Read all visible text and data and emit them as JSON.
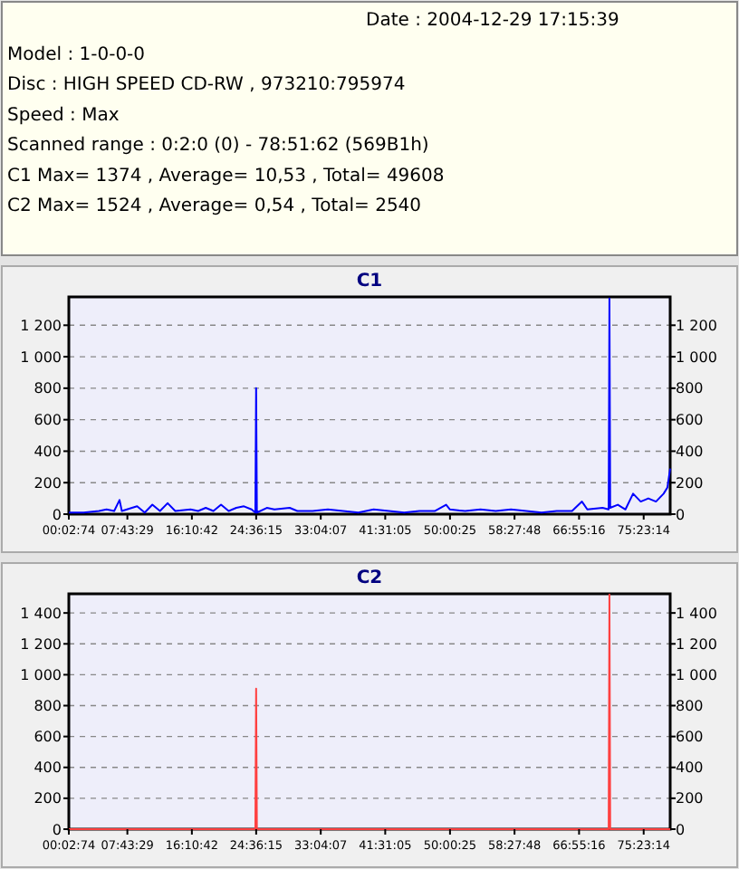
{
  "chart_data": [
    {
      "type": "other",
      "annotations": [
        "Date : 2004-12-29 17:15:39",
        "Model : 1-0-0-0",
        "Disc : HIGH SPEED CD-RW , 973210:795974",
        "Speed : Max",
        "Scanned range : 0:2:0 (0) - 78:51:62 (569B1h)",
        "C1 Max= 1374 , Average= 10,53 , Total= 49608",
        "C2 Max= 1524 , Average= 0,54 , Total= 2540"
      ]
    },
    {
      "type": "line",
      "title": "C1",
      "grid": "y",
      "line_style": "solid",
      "xlim": [
        0.0539,
        78.86
      ],
      "ylim": [
        0,
        1380
      ],
      "y2lim": [
        0,
        1380
      ],
      "xticks": [
        {
          "value": 0.0539,
          "label": "00:02:74"
        },
        {
          "value": 7.7247,
          "label": "07:43:29"
        },
        {
          "value": 16.1783,
          "label": "16:10:42"
        },
        {
          "value": 24.6042,
          "label": "24:36:15"
        },
        {
          "value": 33.0686,
          "label": "33:04:07"
        },
        {
          "value": 41.5181,
          "label": "41:31:05"
        },
        {
          "value": 50.0069,
          "label": "50:00:25"
        },
        {
          "value": 58.4633,
          "label": "58:27:48"
        },
        {
          "value": 66.9211,
          "label": "66:55:16"
        },
        {
          "value": 75.3872,
          "label": "75:23:14"
        }
      ],
      "yticks": [
        0,
        200,
        400,
        600,
        800,
        {
          "value": 1000,
          "label": "1 000"
        },
        {
          "value": 1200,
          "label": "1 200"
        }
      ],
      "y2ticks": [
        0,
        200,
        400,
        600,
        800,
        {
          "value": 1000,
          "label": "1 000"
        },
        {
          "value": 1200,
          "label": "1 200"
        }
      ],
      "series": [
        {
          "color": "#0000ff",
          "x": [
            0.06,
            2,
            4,
            5,
            6,
            6.7,
            7,
            9,
            10,
            11,
            12,
            13,
            14,
            16,
            17,
            18,
            19,
            20,
            21,
            22,
            23,
            24,
            24.5,
            24.6,
            24.7,
            26,
            27,
            29,
            30,
            32,
            34,
            36,
            38,
            40,
            42,
            44,
            46,
            48,
            49.5,
            50,
            52,
            54,
            56,
            58,
            60,
            62,
            64,
            66,
            67.3,
            68,
            70,
            70.8,
            70.9,
            71,
            72,
            73,
            74,
            75,
            76,
            77,
            78,
            78.5,
            78.86
          ],
          "values": [
            10,
            10,
            20,
            30,
            20,
            90,
            20,
            50,
            10,
            60,
            20,
            70,
            20,
            30,
            20,
            40,
            20,
            60,
            20,
            40,
            50,
            30,
            10,
            800,
            10,
            40,
            30,
            40,
            20,
            20,
            30,
            20,
            10,
            30,
            20,
            10,
            20,
            20,
            60,
            30,
            20,
            30,
            20,
            30,
            20,
            10,
            20,
            20,
            80,
            30,
            40,
            30,
            1370,
            40,
            60,
            30,
            130,
            80,
            100,
            80,
            130,
            170,
            290
          ]
        }
      ]
    },
    {
      "type": "line",
      "title": "C2",
      "grid": "y",
      "line_style": "solid",
      "xlim": [
        0.0539,
        78.86
      ],
      "ylim": [
        0,
        1524
      ],
      "y2lim": [
        0,
        1524
      ],
      "xticks": [
        {
          "value": 0.0539,
          "label": "00:02:74"
        },
        {
          "value": 7.7247,
          "label": "07:43:29"
        },
        {
          "value": 16.1783,
          "label": "16:10:42"
        },
        {
          "value": 24.6042,
          "label": "24:36:15"
        },
        {
          "value": 33.0686,
          "label": "33:04:07"
        },
        {
          "value": 41.5181,
          "label": "41:31:05"
        },
        {
          "value": 50.0069,
          "label": "50:00:25"
        },
        {
          "value": 58.4633,
          "label": "58:27:48"
        },
        {
          "value": 66.9211,
          "label": "66:55:16"
        },
        {
          "value": 75.3872,
          "label": "75:23:14"
        }
      ],
      "yticks": [
        0,
        200,
        400,
        600,
        800,
        {
          "value": 1000,
          "label": "1 000"
        },
        {
          "value": 1200,
          "label": "1 200"
        },
        {
          "value": 1400,
          "label": "1 400"
        }
      ],
      "y2ticks": [
        0,
        200,
        400,
        600,
        800,
        {
          "value": 1000,
          "label": "1 000"
        },
        {
          "value": 1200,
          "label": "1 200"
        },
        {
          "value": 1400,
          "label": "1 400"
        }
      ],
      "series": [
        {
          "color": "#ff4040",
          "x": [
            0.06,
            24.5,
            24.6,
            24.7,
            70.8,
            70.9,
            71,
            78.86
          ],
          "values": [
            0,
            0,
            910,
            0,
            0,
            1520,
            0,
            0
          ]
        }
      ]
    }
  ]
}
